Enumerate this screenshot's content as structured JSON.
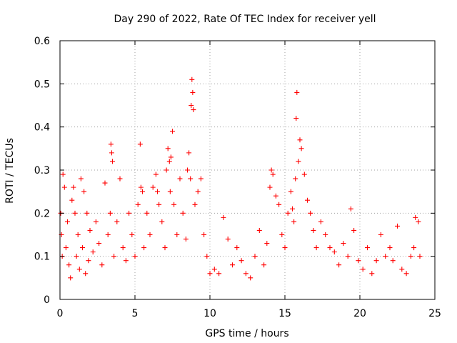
{
  "chart_data": {
    "type": "scatter",
    "title": "Day 290 of 2022, Rate Of TEC Index for receiver yell",
    "xlabel": "GPS time / hours",
    "ylabel": "ROTI / TECUs",
    "xlim": [
      0,
      25
    ],
    "ylim": [
      0,
      0.6
    ],
    "xticks": [
      0,
      5,
      10,
      15,
      20,
      25
    ],
    "xtick_labels": [
      "0",
      "5",
      "10",
      "15",
      "20",
      "25"
    ],
    "yticks": [
      0,
      0.1,
      0.2,
      0.3,
      0.4,
      0.5,
      0.6
    ],
    "ytick_labels": [
      "0",
      "0.1",
      "0.2",
      "0.3",
      "0.4",
      "0.5",
      "0.6"
    ],
    "grid": true,
    "marker": "+",
    "color": "#ff0000",
    "series": [
      {
        "name": "ROTI",
        "x": [
          0.05,
          0.1,
          0.15,
          0.2,
          0.3,
          0.4,
          0.5,
          0.6,
          0.7,
          0.8,
          0.9,
          1.0,
          1.1,
          1.2,
          1.3,
          1.4,
          1.5,
          1.6,
          1.7,
          1.8,
          1.9,
          2.0,
          2.2,
          2.4,
          2.6,
          2.8,
          3.0,
          3.2,
          3.35,
          3.4,
          3.45,
          3.5,
          3.6,
          3.8,
          4.0,
          4.2,
          4.4,
          4.6,
          4.8,
          5.0,
          5.2,
          5.35,
          5.4,
          5.5,
          5.6,
          5.8,
          6.0,
          6.2,
          6.4,
          6.5,
          6.6,
          6.8,
          7.0,
          7.1,
          7.2,
          7.3,
          7.35,
          7.4,
          7.5,
          7.6,
          7.8,
          8.0,
          8.2,
          8.4,
          8.5,
          8.6,
          8.7,
          8.75,
          8.8,
          8.85,
          8.9,
          9.0,
          9.2,
          9.4,
          9.6,
          9.8,
          10.0,
          10.3,
          10.6,
          10.9,
          11.2,
          11.5,
          11.8,
          12.1,
          12.4,
          12.7,
          13.0,
          13.3,
          13.6,
          13.8,
          14.0,
          14.1,
          14.2,
          14.4,
          14.6,
          14.8,
          15.0,
          15.2,
          15.4,
          15.5,
          15.6,
          15.7,
          15.75,
          15.8,
          15.9,
          16.0,
          16.1,
          16.3,
          16.5,
          16.7,
          16.9,
          17.1,
          17.4,
          17.7,
          18.0,
          18.3,
          18.6,
          18.9,
          19.2,
          19.4,
          19.6,
          19.9,
          20.2,
          20.5,
          20.8,
          21.1,
          21.4,
          21.7,
          22.0,
          22.2,
          22.5,
          22.8,
          23.1,
          23.4,
          23.6,
          23.7,
          23.9,
          24.0
        ],
        "y": [
          0.2,
          0.15,
          0.1,
          0.29,
          0.26,
          0.12,
          0.18,
          0.08,
          0.05,
          0.23,
          0.26,
          0.2,
          0.1,
          0.15,
          0.07,
          0.28,
          0.12,
          0.25,
          0.06,
          0.2,
          0.09,
          0.16,
          0.11,
          0.18,
          0.13,
          0.08,
          0.27,
          0.15,
          0.2,
          0.36,
          0.34,
          0.32,
          0.1,
          0.18,
          0.28,
          0.12,
          0.09,
          0.2,
          0.15,
          0.1,
          0.22,
          0.36,
          0.26,
          0.25,
          0.12,
          0.2,
          0.15,
          0.26,
          0.29,
          0.25,
          0.22,
          0.18,
          0.12,
          0.3,
          0.35,
          0.32,
          0.25,
          0.33,
          0.39,
          0.22,
          0.15,
          0.28,
          0.2,
          0.14,
          0.3,
          0.34,
          0.28,
          0.45,
          0.51,
          0.48,
          0.44,
          0.22,
          0.25,
          0.28,
          0.15,
          0.1,
          0.06,
          0.07,
          0.06,
          0.19,
          0.14,
          0.08,
          0.12,
          0.09,
          0.06,
          0.05,
          0.1,
          0.16,
          0.08,
          0.13,
          0.26,
          0.3,
          0.29,
          0.24,
          0.22,
          0.15,
          0.12,
          0.2,
          0.25,
          0.21,
          0.18,
          0.28,
          0.42,
          0.48,
          0.32,
          0.37,
          0.35,
          0.29,
          0.23,
          0.2,
          0.16,
          0.12,
          0.18,
          0.15,
          0.12,
          0.11,
          0.08,
          0.13,
          0.1,
          0.21,
          0.16,
          0.09,
          0.07,
          0.12,
          0.06,
          0.09,
          0.15,
          0.1,
          0.12,
          0.09,
          0.17,
          0.07,
          0.06,
          0.1,
          0.12,
          0.19,
          0.18,
          0.1
        ]
      }
    ]
  }
}
